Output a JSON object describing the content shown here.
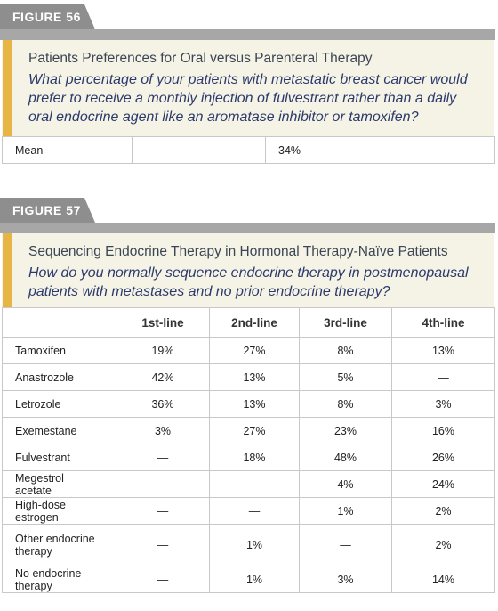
{
  "figures": [
    {
      "label": "FIGURE 56",
      "title": "Patients Preferences for Oral versus Parenteral Therapy",
      "question": [
        "What percentage of your patients with metastatic breast cancer would",
        "prefer to receive a monthly injection of fulvestrant rather than a daily",
        "oral endocrine agent like an aromatase inhibitor or tamoxifen?"
      ],
      "table": {
        "rows": [
          {
            "label": "Mean",
            "value": "34%"
          }
        ]
      }
    },
    {
      "label": "FIGURE 57",
      "title": "Sequencing Endocrine Therapy in Hormonal Therapy-Naïve Patients",
      "question": [
        "How do you normally sequence endocrine therapy in postmenopausal",
        "patients with metastases and no prior endocrine therapy?"
      ],
      "table": {
        "columns": [
          "1st-line",
          "2nd-line",
          "3rd-line",
          "4th-line"
        ],
        "rows": [
          {
            "label": "Tamoxifen",
            "cells": [
              "19%",
              "27%",
              "8%",
              "13%"
            ]
          },
          {
            "label": "Anastrozole",
            "cells": [
              "42%",
              "13%",
              "5%",
              "—"
            ]
          },
          {
            "label": "Letrozole",
            "cells": [
              "36%",
              "13%",
              "8%",
              "3%"
            ]
          },
          {
            "label": "Exemestane",
            "cells": [
              "3%",
              "27%",
              "23%",
              "16%"
            ]
          },
          {
            "label": "Fulvestrant",
            "cells": [
              "—",
              "18%",
              "48%",
              "26%"
            ]
          },
          {
            "label": "Megestrol acetate",
            "cells": [
              "—",
              "—",
              "4%",
              "24%"
            ]
          },
          {
            "label": "High-dose estrogen",
            "cells": [
              "—",
              "—",
              "1%",
              "2%"
            ]
          },
          {
            "label": "Other endocrine therapy",
            "cells": [
              "—",
              "1%",
              "—",
              "2%"
            ]
          },
          {
            "label": "No endocrine therapy",
            "cells": [
              "—",
              "1%",
              "3%",
              "14%"
            ]
          }
        ]
      }
    }
  ]
}
